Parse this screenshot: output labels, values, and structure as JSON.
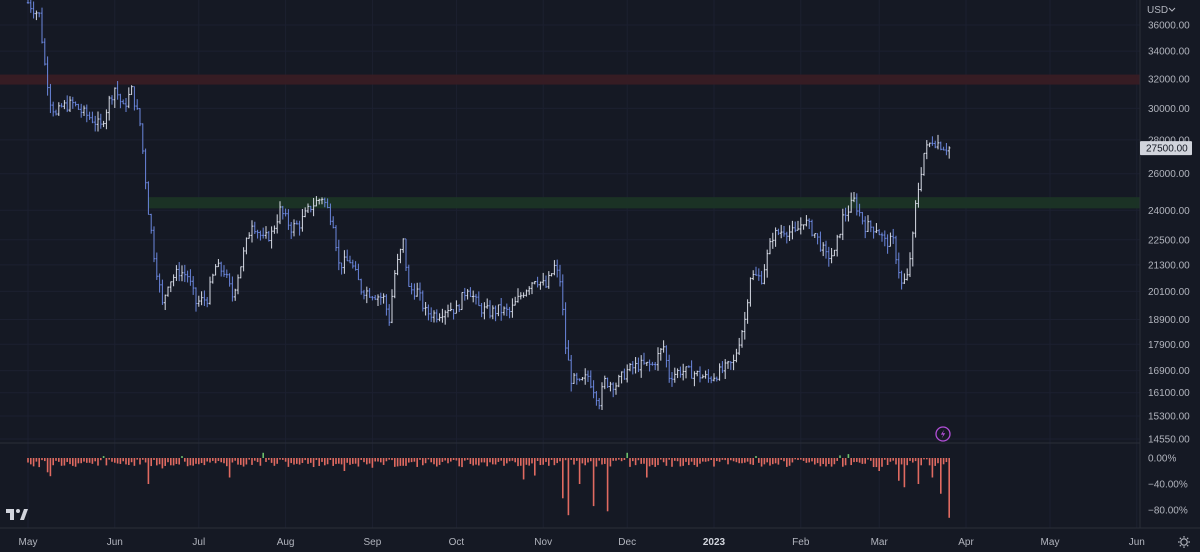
{
  "chart_data": [
    {
      "type": "ohlc",
      "instrument_currency": "USD",
      "last_price_label": "27500.00",
      "y_ticks": [
        36000,
        34000,
        32000,
        30000,
        28000,
        26000,
        24000,
        22500,
        21300,
        20100,
        18900,
        17900,
        16900,
        16100,
        15300,
        14550
      ],
      "y_tick_labels": [
        "36000.00",
        "34000.00",
        "32000.00",
        "30000.00",
        "28000.00",
        "26000.00",
        "24000.00",
        "22500.00",
        "21300.00",
        "20100.00",
        "18900.00",
        "17900.00",
        "16900.00",
        "16100.00",
        "15300.00",
        "14550.00"
      ],
      "ylim": [
        14550,
        37400
      ],
      "y_scale": "log",
      "x_range": [
        "2022-05-01",
        "2023-06-30"
      ],
      "x_ticks": [
        {
          "label": "May",
          "date": "2022-05-01",
          "bold": false
        },
        {
          "label": "Jun",
          "date": "2022-06-01",
          "bold": false
        },
        {
          "label": "Jul",
          "date": "2022-07-01",
          "bold": false
        },
        {
          "label": "Aug",
          "date": "2022-08-01",
          "bold": false
        },
        {
          "label": "Sep",
          "date": "2022-09-01",
          "bold": false
        },
        {
          "label": "Oct",
          "date": "2022-10-01",
          "bold": false
        },
        {
          "label": "Nov",
          "date": "2022-11-01",
          "bold": false
        },
        {
          "label": "Dec",
          "date": "2022-12-01",
          "bold": false
        },
        {
          "label": "2023",
          "date": "2023-01-01",
          "bold": true
        },
        {
          "label": "Feb",
          "date": "2023-02-01",
          "bold": false
        },
        {
          "label": "Mar",
          "date": "2023-03-01",
          "bold": false
        },
        {
          "label": "Apr",
          "date": "2023-04-01",
          "bold": false
        },
        {
          "label": "May",
          "date": "2023-05-01",
          "bold": false
        },
        {
          "label": "Jun",
          "date": "2023-06-01",
          "bold": false
        }
      ],
      "price_path": [
        [
          "2022-05-01",
          37800
        ],
        [
          "2022-05-05",
          36800
        ],
        [
          "2022-05-07",
          33000
        ],
        [
          "2022-05-09",
          30500
        ],
        [
          "2022-05-11",
          29500
        ],
        [
          "2022-05-13",
          30100
        ],
        [
          "2022-05-17",
          30300
        ],
        [
          "2022-05-20",
          29800
        ],
        [
          "2022-05-24",
          29300
        ],
        [
          "2022-05-27",
          28800
        ],
        [
          "2022-05-30",
          30500
        ],
        [
          "2022-06-01",
          31400
        ],
        [
          "2022-06-04",
          30000
        ],
        [
          "2022-06-07",
          31200
        ],
        [
          "2022-06-10",
          29000
        ],
        [
          "2022-06-13",
          24000
        ],
        [
          "2022-06-15",
          21800
        ],
        [
          "2022-06-18",
          19500
        ],
        [
          "2022-06-20",
          20500
        ],
        [
          "2022-06-24",
          21000
        ],
        [
          "2022-06-27",
          20800
        ],
        [
          "2022-06-30",
          19600
        ],
        [
          "2022-07-04",
          19800
        ],
        [
          "2022-07-07",
          21200
        ],
        [
          "2022-07-10",
          21000
        ],
        [
          "2022-07-13",
          19900
        ],
        [
          "2022-07-16",
          21300
        ],
        [
          "2022-07-20",
          23400
        ],
        [
          "2022-07-24",
          22500
        ],
        [
          "2022-07-27",
          22800
        ],
        [
          "2022-07-30",
          24000
        ],
        [
          "2022-08-03",
          23100
        ],
        [
          "2022-08-06",
          23300
        ],
        [
          "2022-08-10",
          24200
        ],
        [
          "2022-08-14",
          24700
        ],
        [
          "2022-08-18",
          23400
        ],
        [
          "2022-08-20",
          21300
        ],
        [
          "2022-08-24",
          21500
        ],
        [
          "2022-08-28",
          20200
        ],
        [
          "2022-09-01",
          20000
        ],
        [
          "2022-09-05",
          19800
        ],
        [
          "2022-09-07",
          18900
        ],
        [
          "2022-09-09",
          20900
        ],
        [
          "2022-09-12",
          22400
        ],
        [
          "2022-09-14",
          20200
        ],
        [
          "2022-09-17",
          20100
        ],
        [
          "2022-09-20",
          19200
        ],
        [
          "2022-09-24",
          19100
        ],
        [
          "2022-09-28",
          19400
        ],
        [
          "2022-10-01",
          19300
        ],
        [
          "2022-10-05",
          20300
        ],
        [
          "2022-10-09",
          19400
        ],
        [
          "2022-10-13",
          19200
        ],
        [
          "2022-10-16",
          19300
        ],
        [
          "2022-10-20",
          19200
        ],
        [
          "2022-10-25",
          20100
        ],
        [
          "2022-10-29",
          20700
        ],
        [
          "2022-11-02",
          20300
        ],
        [
          "2022-11-05",
          21200
        ],
        [
          "2022-11-07",
          20600
        ],
        [
          "2022-11-09",
          17800
        ],
        [
          "2022-11-11",
          16600
        ],
        [
          "2022-11-14",
          16400
        ],
        [
          "2022-11-17",
          16700
        ],
        [
          "2022-11-21",
          15800
        ],
        [
          "2022-11-23",
          16500
        ],
        [
          "2022-11-27",
          16400
        ],
        [
          "2022-12-01",
          16900
        ],
        [
          "2022-12-05",
          17100
        ],
        [
          "2022-12-10",
          17100
        ],
        [
          "2022-12-14",
          17800
        ],
        [
          "2022-12-16",
          16700
        ],
        [
          "2022-12-20",
          16900
        ],
        [
          "2022-12-25",
          16800
        ],
        [
          "2022-12-30",
          16600
        ],
        [
          "2023-01-04",
          16900
        ],
        [
          "2023-01-08",
          17200
        ],
        [
          "2023-01-12",
          18900
        ],
        [
          "2023-01-14",
          20800
        ],
        [
          "2023-01-18",
          20700
        ],
        [
          "2023-01-22",
          22700
        ],
        [
          "2023-01-26",
          23000
        ],
        [
          "2023-01-30",
          22800
        ],
        [
          "2023-02-02",
          23500
        ],
        [
          "2023-02-06",
          22800
        ],
        [
          "2023-02-10",
          21700
        ],
        [
          "2023-02-13",
          21800
        ],
        [
          "2023-02-16",
          23600
        ],
        [
          "2023-02-20",
          24500
        ],
        [
          "2023-02-24",
          23200
        ],
        [
          "2023-02-28",
          23100
        ],
        [
          "2023-03-03",
          22400
        ],
        [
          "2023-03-06",
          22400
        ],
        [
          "2023-03-09",
          20400
        ],
        [
          "2023-03-11",
          20700
        ],
        [
          "2023-03-13",
          22600
        ],
        [
          "2023-03-14",
          24200
        ],
        [
          "2023-03-17",
          27200
        ],
        [
          "2023-03-20",
          28000
        ],
        [
          "2023-03-24",
          27600
        ],
        [
          "2023-03-26",
          27500
        ]
      ],
      "zones": [
        {
          "name": "resistance",
          "from": 31600,
          "to": 32300,
          "color": "#3a1d24"
        },
        {
          "name": "support",
          "from": 24100,
          "to": 24700,
          "color": "#1c3526",
          "start": "2022-06-13"
        }
      ],
      "colors": {
        "bars": "#6b86dd",
        "bars_dark": "#d7dbe6",
        "background": "#151924",
        "positive": "#6cbf6a",
        "negative": "#e06a61"
      }
    },
    {
      "type": "histogram",
      "y_ticks": [
        0,
        -40,
        -80
      ],
      "y_tick_labels": [
        "0.00%",
        "−40.00%",
        "−80.00%"
      ],
      "ylim": [
        -90,
        8
      ],
      "x_range": [
        "2022-05-01",
        "2023-06-30"
      ],
      "values": [
        [
          "2022-05-01",
          -7
        ],
        [
          "2022-05-05",
          -14
        ],
        [
          "2022-05-08",
          -22
        ],
        [
          "2022-05-09",
          -28
        ],
        [
          "2022-05-13",
          -12
        ],
        [
          "2022-05-20",
          -8
        ],
        [
          "2022-05-28",
          3
        ],
        [
          "2022-06-04",
          -5
        ],
        [
          "2022-06-10",
          -10
        ],
        [
          "2022-06-13",
          -40
        ],
        [
          "2022-06-18",
          -16
        ],
        [
          "2022-06-25",
          3
        ],
        [
          "2022-06-30",
          -9
        ],
        [
          "2022-07-05",
          -7
        ],
        [
          "2022-07-12",
          -30
        ],
        [
          "2022-07-18",
          -10
        ],
        [
          "2022-07-24",
          8
        ],
        [
          "2022-08-05",
          -9
        ],
        [
          "2022-08-14",
          -6
        ],
        [
          "2022-08-22",
          -20
        ],
        [
          "2022-09-01",
          -15
        ],
        [
          "2022-09-12",
          -12
        ],
        [
          "2022-09-20",
          -8
        ],
        [
          "2022-10-03",
          -14
        ],
        [
          "2022-10-15",
          -10
        ],
        [
          "2022-10-20",
          -5
        ],
        [
          "2022-10-25",
          -33
        ],
        [
          "2022-10-29",
          -27
        ],
        [
          "2022-11-03",
          -12
        ],
        [
          "2022-11-08",
          -62
        ],
        [
          "2022-11-10",
          -88
        ],
        [
          "2022-11-14",
          -40
        ],
        [
          "2022-11-19",
          -74
        ],
        [
          "2022-11-24",
          -82
        ],
        [
          "2022-12-01",
          8
        ],
        [
          "2022-12-08",
          -30
        ],
        [
          "2022-12-15",
          -12
        ],
        [
          "2022-12-22",
          -6
        ],
        [
          "2022-12-30",
          -5
        ],
        [
          "2023-01-08",
          -5
        ],
        [
          "2023-01-16",
          3
        ],
        [
          "2023-01-28",
          -12
        ],
        [
          "2023-02-06",
          -10
        ],
        [
          "2023-02-10",
          -13
        ],
        [
          "2023-02-15",
          4
        ],
        [
          "2023-02-18",
          6
        ],
        [
          "2023-02-21",
          -6
        ],
        [
          "2023-03-01",
          -20
        ],
        [
          "2023-03-08",
          -35
        ],
        [
          "2023-03-10",
          -45
        ],
        [
          "2023-03-15",
          -40
        ],
        [
          "2023-03-20",
          -30
        ],
        [
          "2023-03-23",
          -55
        ],
        [
          "2023-03-26",
          -92
        ]
      ]
    }
  ],
  "icons": {
    "logo": "tradingview-logo",
    "settings": "gear-icon",
    "alert": "lightning-icon"
  },
  "labels": {
    "currency": "USD"
  }
}
